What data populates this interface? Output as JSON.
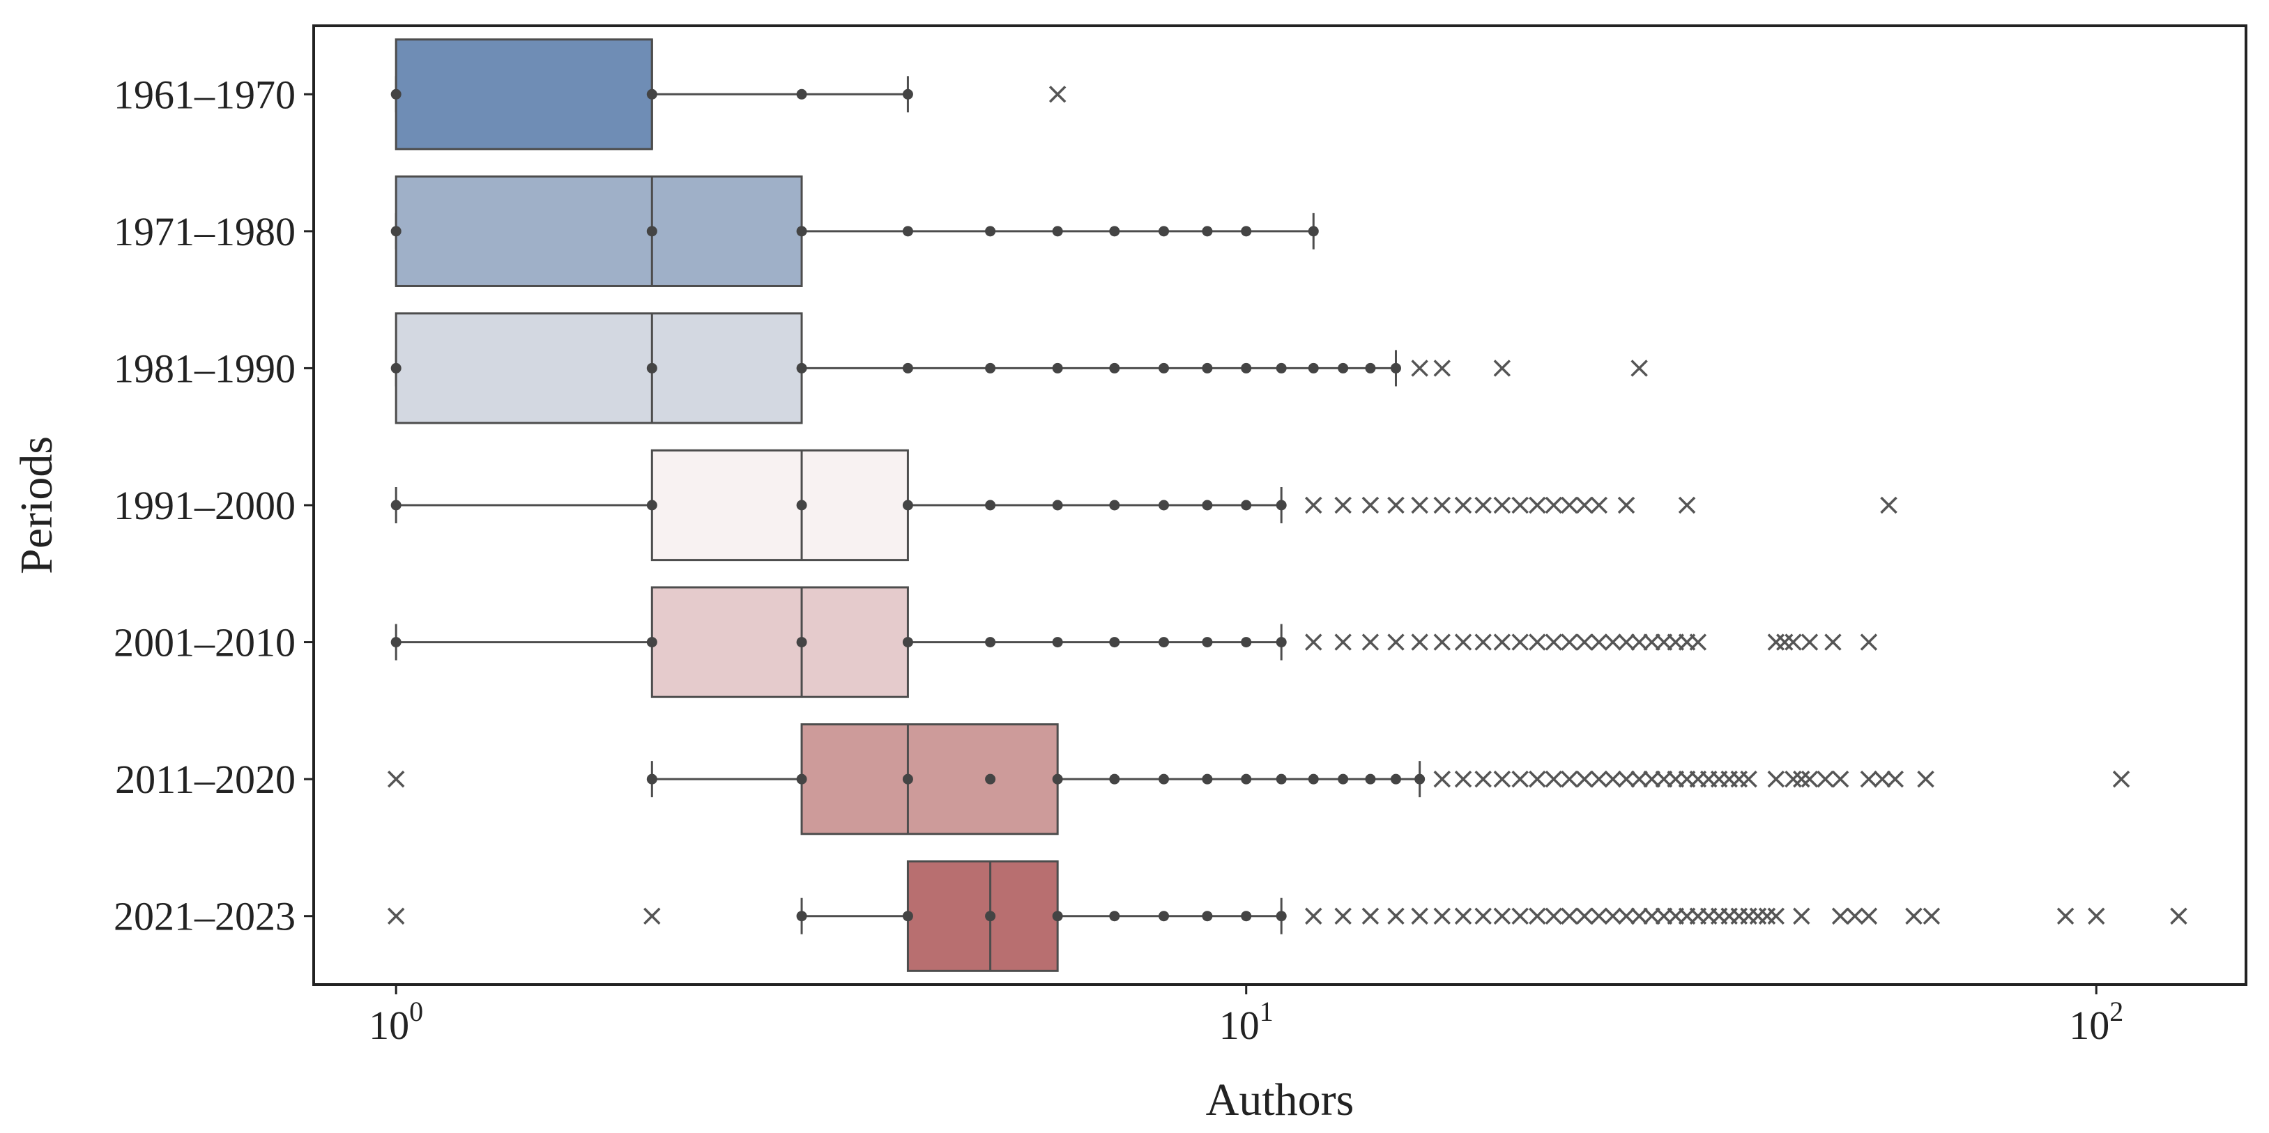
{
  "chart_data": {
    "type": "box",
    "orientation": "horizontal",
    "xlabel": "Authors",
    "ylabel": "Periods",
    "xscale": "log",
    "xlim": [
      0.8,
      150
    ],
    "x_ticks": [
      {
        "value": 1,
        "base": "10",
        "exponent": "0"
      },
      {
        "value": 10,
        "base": "10",
        "exponent": "1"
      },
      {
        "value": 100,
        "base": "10",
        "exponent": "2"
      }
    ],
    "grid": false,
    "legend": "none",
    "series": [
      {
        "category": "1961–1970",
        "color": "#6f8db5",
        "q1": 1,
        "median": 2,
        "q3": 2,
        "whisker_low": 1,
        "whisker_high": 4,
        "points": [
          1,
          2,
          3,
          4
        ],
        "outliers": [
          6
        ]
      },
      {
        "category": "1971–1980",
        "color": "#9fb0c8",
        "q1": 1,
        "median": 2,
        "q3": 3,
        "whisker_low": 1,
        "whisker_high": 12,
        "points": [
          1,
          2,
          3,
          4,
          5,
          6,
          7,
          8,
          9,
          10,
          12
        ],
        "outliers": []
      },
      {
        "category": "1981–1990",
        "color": "#d3d8e1",
        "q1": 1,
        "median": 2,
        "q3": 3,
        "whisker_low": 1,
        "whisker_high": 15,
        "points": [
          1,
          2,
          3,
          4,
          5,
          6,
          7,
          8,
          9,
          10,
          11,
          12,
          13,
          14,
          15
        ],
        "outliers": [
          16,
          17,
          20,
          29
        ]
      },
      {
        "category": "1991–2000",
        "color": "#f8f2f2",
        "q1": 2,
        "median": 3,
        "q3": 4,
        "whisker_low": 1,
        "whisker_high": 11,
        "points": [
          1,
          2,
          3,
          4,
          5,
          6,
          7,
          8,
          9,
          10,
          11
        ],
        "outliers": [
          12,
          13,
          14,
          15,
          16,
          17,
          18,
          19,
          20,
          21,
          22,
          23,
          24,
          25,
          26,
          28,
          33,
          57
        ]
      },
      {
        "category": "2001–2010",
        "color": "#e5cbcc",
        "q1": 2,
        "median": 3,
        "q3": 4,
        "whisker_low": 1,
        "whisker_high": 11,
        "points": [
          1,
          2,
          3,
          4,
          5,
          6,
          7,
          8,
          9,
          10,
          11
        ],
        "outliers": [
          12,
          13,
          14,
          15,
          16,
          17,
          18,
          19,
          20,
          21,
          22,
          23,
          24,
          25,
          26,
          27,
          28,
          29,
          30,
          31,
          32,
          33,
          34,
          42,
          43,
          44,
          46,
          49,
          54
        ]
      },
      {
        "category": "2011–2020",
        "color": "#cd9b9a",
        "q1": 3,
        "median": 4,
        "q3": 6,
        "whisker_low": 2,
        "whisker_high": 16,
        "points": [
          2,
          3,
          4,
          5,
          6,
          7,
          8,
          9,
          10,
          11,
          12,
          13,
          14,
          15,
          16
        ],
        "outliers": [
          1,
          17,
          18,
          19,
          20,
          21,
          22,
          23,
          24,
          25,
          26,
          27,
          28,
          29,
          30,
          31,
          32,
          33,
          34,
          35,
          36,
          37,
          38,
          39,
          42,
          44,
          45,
          46,
          48,
          50,
          54,
          56,
          58,
          63,
          107
        ]
      },
      {
        "category": "2021–2023",
        "color": "#b86f70",
        "q1": 4,
        "median": 5,
        "q3": 6,
        "whisker_low": 3,
        "whisker_high": 11,
        "points": [
          3,
          4,
          5,
          6,
          7,
          8,
          9,
          10,
          11
        ],
        "outliers": [
          1,
          2,
          12,
          13,
          14,
          15,
          16,
          17,
          18,
          19,
          20,
          21,
          22,
          23,
          24,
          25,
          26,
          27,
          28,
          29,
          30,
          31,
          32,
          33,
          34,
          35,
          36,
          37,
          38,
          39,
          40,
          41,
          42,
          45,
          50,
          52,
          54,
          61,
          64,
          92,
          100,
          125
        ]
      }
    ]
  }
}
